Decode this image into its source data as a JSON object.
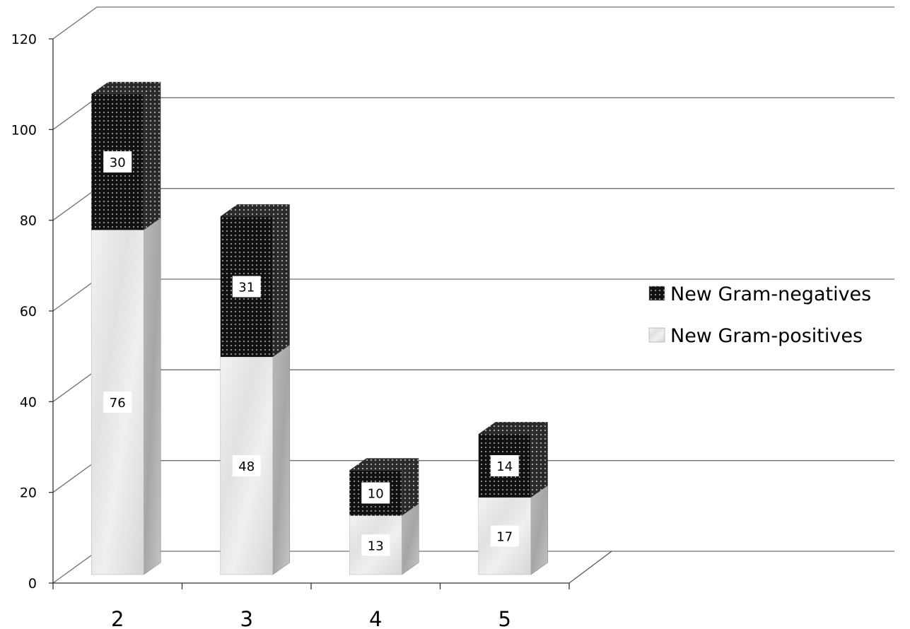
{
  "chart_data": {
    "type": "bar",
    "stacked": true,
    "three_d": true,
    "categories": [
      "2",
      "3",
      "4",
      "5"
    ],
    "series": [
      {
        "name": "New Gram-positives",
        "values": [
          76,
          48,
          13,
          17
        ],
        "pattern": "marble",
        "color": "#e6e6e6"
      },
      {
        "name": "New Gram-negatives",
        "values": [
          30,
          31,
          10,
          14
        ],
        "pattern": "dotted",
        "color": "#111111"
      }
    ],
    "ylim": [
      0,
      120
    ],
    "yticks": [
      "0",
      "20",
      "40",
      "60",
      "80",
      "100",
      "120"
    ],
    "grid": true,
    "legend": "right",
    "title": "",
    "xlabel": "",
    "ylabel": ""
  }
}
